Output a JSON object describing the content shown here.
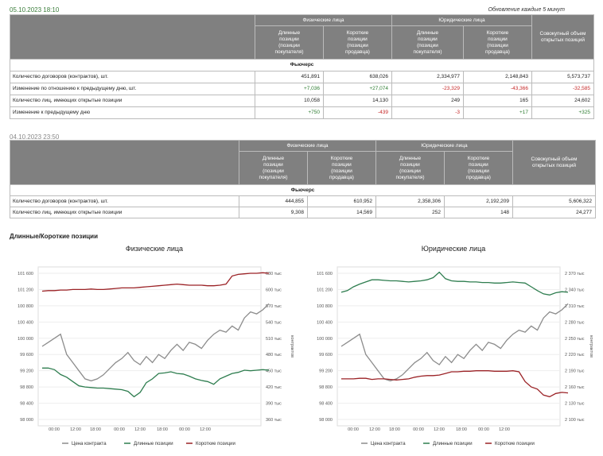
{
  "snap1": {
    "timestamp": "05.10.2023 18:10",
    "update_note": "Обновление каждые 5 минут",
    "header": {
      "phys": "Физические лица",
      "legal": "Юридические лица",
      "long": [
        "Длинные",
        "позиции",
        "(позиции",
        "покупателя)"
      ],
      "short": [
        "Короткие",
        "позиции",
        "(позиции",
        "продавца)"
      ],
      "total": [
        "Совокупный объем",
        "открытых позиций"
      ]
    },
    "section": "Фьючерс",
    "rows": [
      {
        "label": "Количество договоров (контрактов), шт.",
        "v": [
          "451,891",
          "638,026",
          "2,334,977",
          "2,148,843",
          "5,573,737"
        ],
        "c": [
          "",
          "",
          "",
          "",
          ""
        ]
      },
      {
        "label": "Изменение по отношению к предыдущему дню, шт.",
        "v": [
          "+7,036",
          "+27,074",
          "-23,329",
          "-43,366",
          "-32,585"
        ],
        "c": [
          "pos",
          "pos",
          "neg",
          "neg",
          "neg"
        ]
      },
      {
        "label": "Количество лиц, имеющих открытые позиции",
        "v": [
          "10,058",
          "14,130",
          "249",
          "165",
          "24,602"
        ],
        "c": [
          "",
          "",
          "",
          "",
          ""
        ]
      },
      {
        "label": "Изменение к предыдущему дню",
        "v": [
          "+750",
          "-439",
          "-3",
          "+17",
          "+325"
        ],
        "c": [
          "pos",
          "neg",
          "neg",
          "pos",
          "pos"
        ]
      }
    ]
  },
  "snap2": {
    "timestamp": "04.10.2023 23:50",
    "header": {
      "phys": "Физические лица",
      "legal": "Юридические лица",
      "long": [
        "Длинные",
        "позиции",
        "(позиции",
        "покупателя)"
      ],
      "short": [
        "Короткие",
        "позиции",
        "(позиции",
        "продавца)"
      ],
      "total": [
        "Совокупный объем",
        "открытых позиций"
      ]
    },
    "section": "Фьючерс",
    "rows": [
      {
        "label": "Количество договоров (контрактов), шт.",
        "v": [
          "444,855",
          "610,952",
          "2,358,306",
          "2,192,209",
          "5,606,322"
        ],
        "c": [
          "",
          "",
          "",
          "",
          ""
        ]
      },
      {
        "label": "Количество лиц, имеющих открытые позиции",
        "v": [
          "9,308",
          "14,569",
          "252",
          "148",
          "24,277"
        ],
        "c": [
          "",
          "",
          "",
          "",
          ""
        ]
      }
    ]
  },
  "charts_title": "Длинные/Короткие позиции",
  "colors": {
    "price": "#8c8c8c",
    "long": "#2e7d4f",
    "short": "#9b2226"
  },
  "chart_data": [
    {
      "type": "line",
      "title": "Физические лица",
      "ylabel_right": "контрактов",
      "x_ticks": [
        "00:00",
        "12:00",
        "18:00",
        "00:00",
        "12:00",
        "18:00",
        "00:00",
        "12:00"
      ],
      "y_left_ticks": [
        "101 600",
        "101 200",
        "100 800",
        "100 400",
        "100 000",
        "99 600",
        "99 200",
        "98 800",
        "98 400",
        "98 000"
      ],
      "y_right_ticks": [
        "630 тыс",
        "600 тыс",
        "570 тыс",
        "540 тыс",
        "510 тыс",
        "480 тыс",
        "450 тыс",
        "420 тыс",
        "390 тыс",
        "360 тыс"
      ],
      "ylim_left": [
        98000,
        101600
      ],
      "ylim_right": [
        360000,
        630000
      ],
      "legend": [
        "Цена контракта",
        "Длинные позиции",
        "Короткие позиции"
      ],
      "series": [
        {
          "name": "Цена контракта",
          "axis": "left",
          "values": [
            99800,
            99900,
            100000,
            100100,
            99600,
            99400,
            99200,
            99000,
            98950,
            99000,
            99100,
            99250,
            99400,
            99500,
            99650,
            99450,
            99350,
            99550,
            99400,
            99600,
            99500,
            99700,
            99850,
            99700,
            99900,
            99850,
            99750,
            99950,
            100100,
            100200,
            100150,
            100300,
            100200,
            100500,
            100650,
            100600,
            100700,
            100850
          ]
        },
        {
          "name": "Длинные позиции",
          "axis": "right",
          "values": [
            455000,
            455000,
            452000,
            443000,
            438000,
            430000,
            422000,
            420000,
            419000,
            418000,
            418000,
            417000,
            416000,
            415000,
            412000,
            402000,
            410000,
            428000,
            435000,
            445000,
            446000,
            448000,
            445000,
            444000,
            440000,
            435000,
            432000,
            430000,
            425000,
            435000,
            440000,
            445000,
            447000,
            451000,
            450000,
            451000,
            452000,
            451000
          ]
        },
        {
          "name": "Короткие позиции",
          "axis": "right",
          "values": [
            597000,
            598000,
            598000,
            599000,
            599000,
            600000,
            600000,
            600000,
            601000,
            600000,
            600000,
            601000,
            602000,
            603000,
            603000,
            603000,
            604000,
            605000,
            606000,
            607000,
            608000,
            609000,
            610000,
            609000,
            608000,
            608000,
            608000,
            607000,
            607000,
            608000,
            610000,
            625000,
            628000,
            629000,
            630000,
            630000,
            631000,
            630000
          ]
        }
      ]
    },
    {
      "type": "line",
      "title": "Юридические лица",
      "ylabel_right": "контрактов",
      "x_ticks": [
        "00:00",
        "12:00",
        "18:00",
        "00:00",
        "12:00",
        "18:00",
        "00:00",
        "12:00"
      ],
      "y_left_ticks": [
        "101 600",
        "101 200",
        "100 800",
        "100 400",
        "100 000",
        "99 600",
        "99 200",
        "98 800",
        "98 400",
        "98 000"
      ],
      "y_right_ticks": [
        "2 370 тыс",
        "2 340 тыс",
        "2 310 тыс",
        "2 280 тыс",
        "2 250 тыс",
        "2 220 тыс",
        "2 190 тыс",
        "2 160 тыс",
        "2 130 тыс",
        "2 100 тыс"
      ],
      "ylim_left": [
        98000,
        101600
      ],
      "ylim_right": [
        2100000,
        2370000
      ],
      "legend": [
        "Цена контракта",
        "Длинные позиции",
        "Короткие позиции"
      ],
      "series": [
        {
          "name": "Цена контракта",
          "axis": "left",
          "values": [
            99800,
            99900,
            100000,
            100100,
            99600,
            99400,
            99200,
            99000,
            98950,
            99000,
            99100,
            99250,
            99400,
            99500,
            99650,
            99450,
            99350,
            99550,
            99400,
            99600,
            99500,
            99700,
            99850,
            99700,
            99900,
            99850,
            99750,
            99950,
            100100,
            100200,
            100150,
            100300,
            100200,
            100500,
            100650,
            100600,
            100700,
            100850
          ]
        },
        {
          "name": "Длинные позиции",
          "axis": "right",
          "values": [
            2335000,
            2338000,
            2345000,
            2350000,
            2354000,
            2358000,
            2358000,
            2357000,
            2356000,
            2356000,
            2355000,
            2354000,
            2355000,
            2356000,
            2358000,
            2362000,
            2372000,
            2360000,
            2356000,
            2355000,
            2355000,
            2354000,
            2354000,
            2353000,
            2353000,
            2352000,
            2352000,
            2353000,
            2354000,
            2353000,
            2352000,
            2345000,
            2338000,
            2332000,
            2330000,
            2334000,
            2336000,
            2335000
          ]
        },
        {
          "name": "Короткие позиции",
          "axis": "right",
          "values": [
            2175000,
            2175000,
            2175000,
            2176000,
            2176000,
            2174000,
            2175000,
            2175000,
            2174000,
            2173000,
            2174000,
            2175000,
            2178000,
            2180000,
            2181000,
            2181000,
            2182000,
            2185000,
            2188000,
            2188000,
            2189000,
            2189000,
            2190000,
            2190000,
            2190000,
            2189000,
            2189000,
            2189000,
            2190000,
            2188000,
            2170000,
            2160000,
            2156000,
            2145000,
            2142000,
            2148000,
            2150000,
            2149000
          ]
        }
      ]
    }
  ]
}
